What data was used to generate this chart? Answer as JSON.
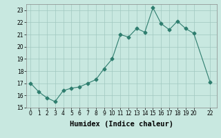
{
  "x": [
    0,
    1,
    2,
    3,
    4,
    5,
    6,
    7,
    8,
    9,
    10,
    11,
    12,
    13,
    14,
    15,
    16,
    17,
    18,
    19,
    20,
    22
  ],
  "y": [
    17.0,
    16.3,
    15.8,
    15.5,
    16.4,
    16.6,
    16.7,
    17.0,
    17.3,
    18.2,
    19.0,
    21.0,
    20.8,
    21.5,
    21.2,
    23.2,
    21.9,
    21.4,
    22.1,
    21.5,
    21.1,
    17.1
  ],
  "line_color": "#2e7d6e",
  "marker": "D",
  "marker_size": 2.5,
  "bg_color": "#c8e8e0",
  "grid_color": "#a0c8c0",
  "xlabel": "Humidex (Indice chaleur)",
  "xlim": [
    -0.5,
    22.8
  ],
  "ylim": [
    15.0,
    23.5
  ],
  "yticks": [
    15,
    16,
    17,
    18,
    19,
    20,
    21,
    22,
    23
  ],
  "xticks": [
    0,
    1,
    2,
    3,
    4,
    5,
    6,
    7,
    8,
    9,
    10,
    11,
    12,
    13,
    14,
    15,
    16,
    17,
    18,
    19,
    20,
    22
  ],
  "tick_labelsize": 5.5,
  "xlabel_fontsize": 7.5,
  "line_width": 0.8
}
